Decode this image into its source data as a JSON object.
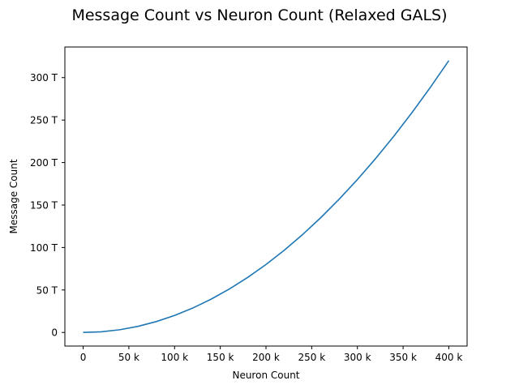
{
  "chart_data": {
    "type": "line",
    "title": "Message Count vs Neuron Count (Relaxed GALS)",
    "xlabel": "Neuron Count",
    "ylabel": "Message Count",
    "xlim": [
      -20000,
      420000
    ],
    "ylim": [
      -16000000000000,
      336000000000000
    ],
    "xticks": [
      0,
      50000,
      100000,
      150000,
      200000,
      250000,
      300000,
      350000,
      400000
    ],
    "xtick_labels": [
      "0",
      "50 k",
      "100 k",
      "150 k",
      "200 k",
      "250 k",
      "300 k",
      "350 k",
      "400 k"
    ],
    "yticks": [
      0,
      50000000000000,
      100000000000000,
      150000000000000,
      200000000000000,
      250000000000000,
      300000000000000
    ],
    "ytick_labels": [
      "0",
      "50 T",
      "100 T",
      "150 T",
      "200 T",
      "250 T",
      "300 T"
    ],
    "grid": false,
    "legend": false,
    "series": [
      {
        "color": "#1f77b4",
        "x": [
          0,
          20000,
          40000,
          60000,
          80000,
          100000,
          120000,
          140000,
          160000,
          180000,
          200000,
          220000,
          240000,
          260000,
          280000,
          300000,
          320000,
          340000,
          360000,
          380000,
          400000
        ],
        "y": [
          0,
          800000000000,
          3200000000000,
          7200000000000,
          12800000000000,
          20000000000000,
          28800000000000,
          39200000000000,
          51200000000000,
          64800000000000,
          80000000000000,
          96800000000000,
          115200000000000,
          135200000000000,
          156800000000000,
          180000000000000,
          204800000000000,
          231200000000000,
          259200000000000,
          288800000000000,
          320000000000000
        ]
      }
    ]
  }
}
